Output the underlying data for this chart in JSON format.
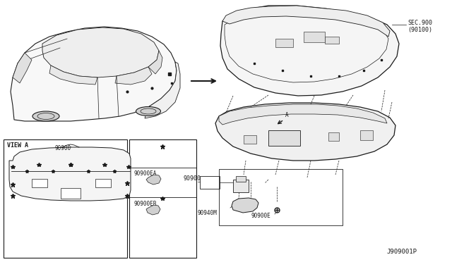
{
  "bg_color": "#ffffff",
  "line_color": "#1a1a1a",
  "diagram_id": "J909001P",
  "sec_label": "SEC.900\n(90100)",
  "view_a_label": "VIEW A",
  "part_90900": "90900",
  "part_90940M": "90940M",
  "part_90900E": "90900E",
  "part_90900EA": "90900EA",
  "part_90900EB": "90900EB"
}
